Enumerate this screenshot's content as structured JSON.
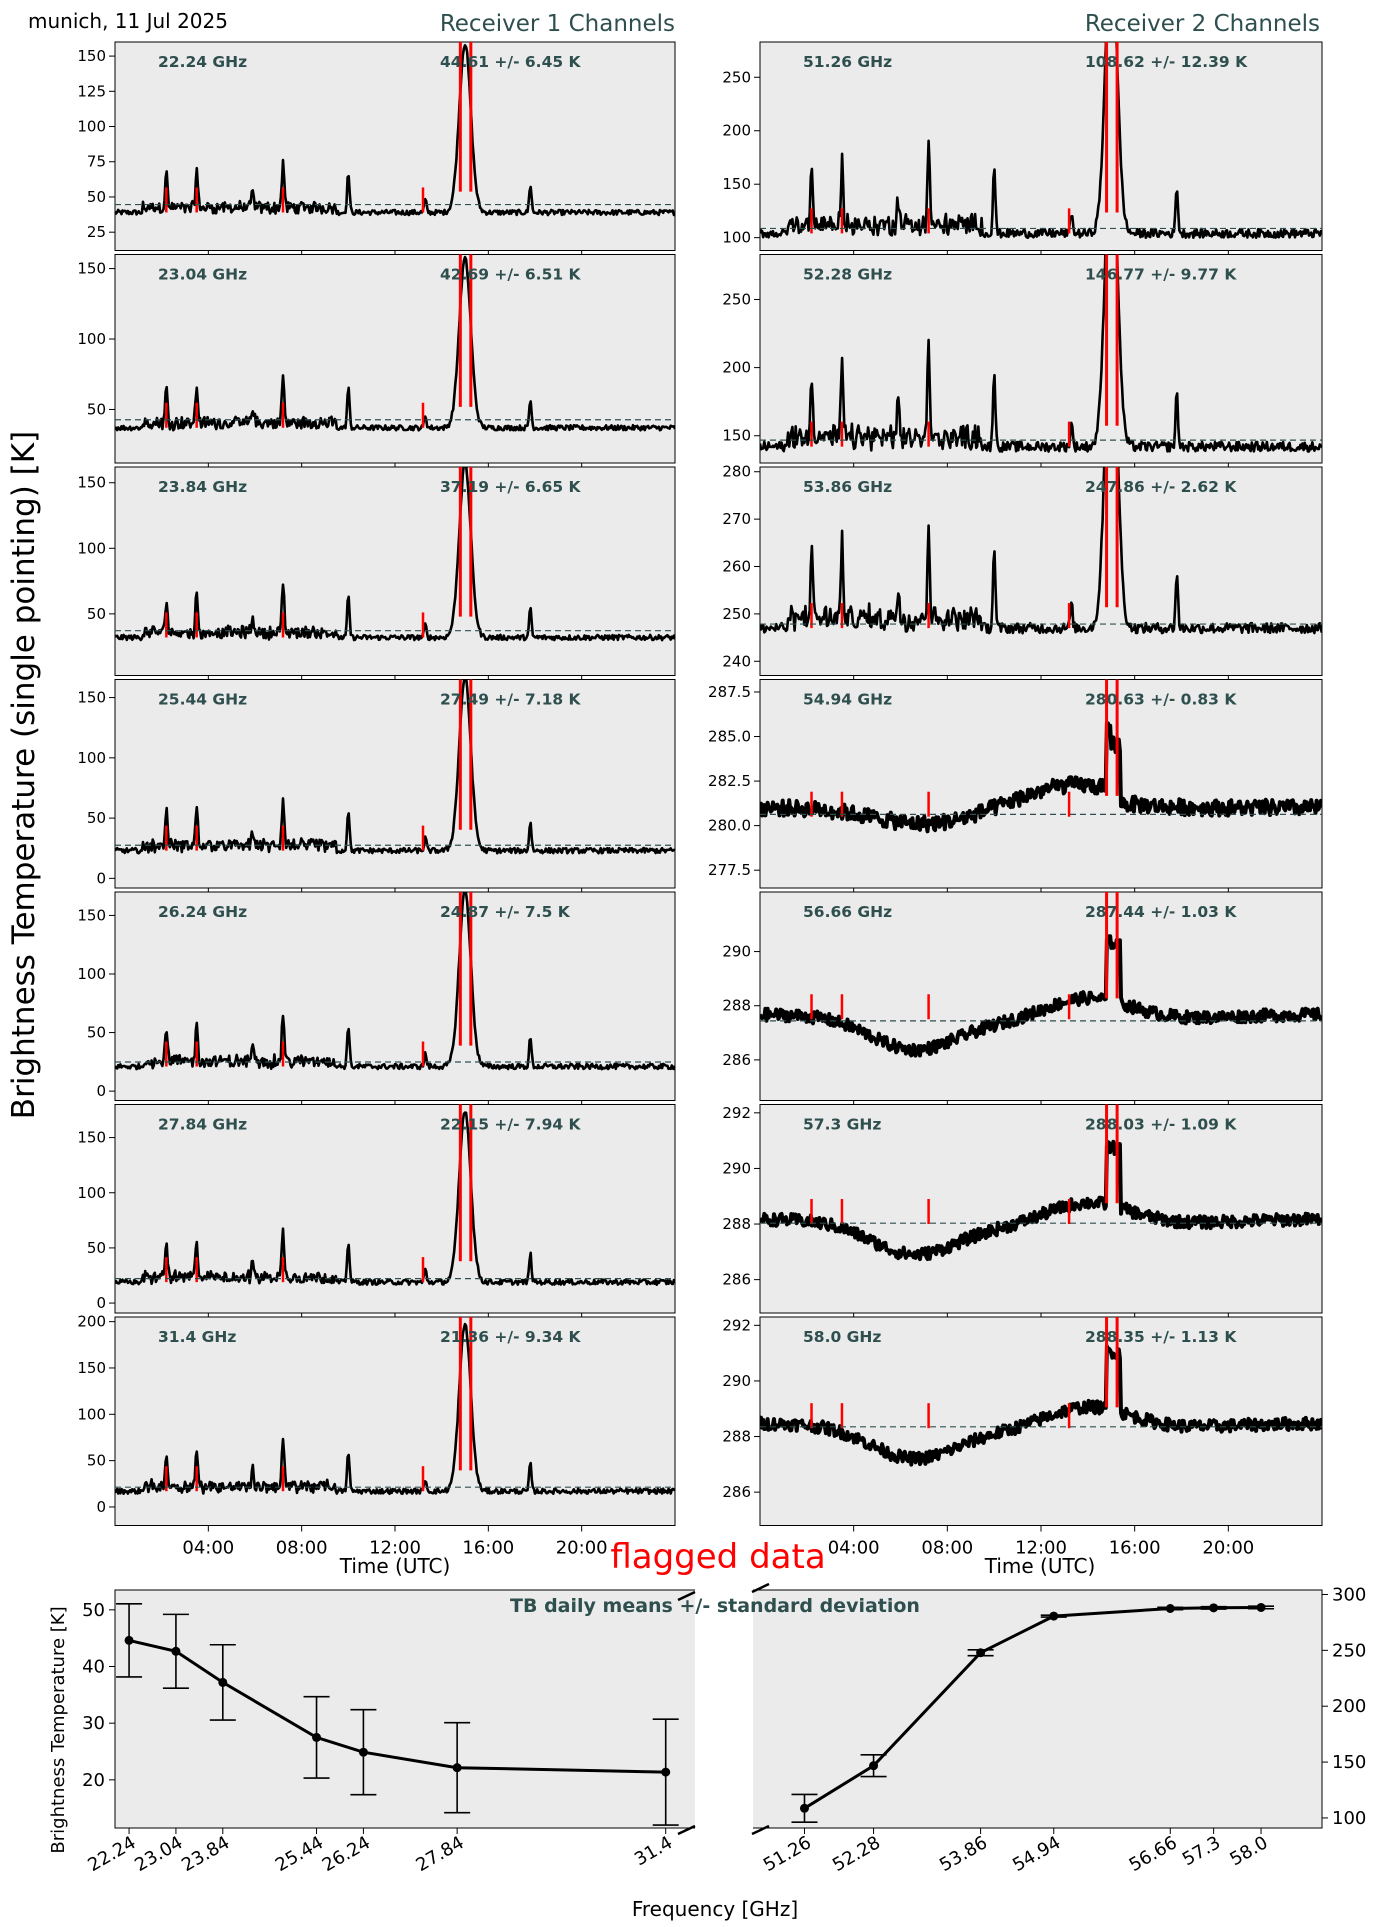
{
  "header": {
    "location_date": "munich, 11 Jul 2025",
    "receiver1_title": "Receiver 1 Channels",
    "receiver2_title": "Receiver 2 Channels"
  },
  "labels": {
    "y_axis_main": "Brightness Temperature (single pointing) [K]",
    "x_axis_time": "Time (UTC)",
    "flagged_legend": "flagged data",
    "bottom_title": "TB daily means +/- standard deviation",
    "bottom_ylabel": "Brightness Temperature [K]",
    "bottom_xlabel": "Frequency [GHz]"
  },
  "colors": {
    "panel_bg": "#ebebeb",
    "trace": "#000000",
    "flagged": "#ff0000",
    "annotation": "#2f4f4f",
    "mean_line": "#2f4f4f"
  },
  "time_ticks": [
    "04:00",
    "08:00",
    "12:00",
    "16:00",
    "20:00"
  ],
  "chart_data": [
    {
      "type": "line",
      "title": "Receiver 1 Channels",
      "xlabel": "Time (UTC)",
      "ylabel": "Brightness Temperature (single pointing) [K]",
      "xlim_hours": [
        0,
        24
      ],
      "series": [
        {
          "name": "22.24 GHz",
          "freq_label": "22.24 GHz",
          "stats_label": "44.61 +/- 6.45 K",
          "mean": 44.61,
          "ylim": [
            12,
            160
          ],
          "yticks": [
            25,
            50,
            75,
            100,
            125,
            150
          ],
          "base": 39,
          "peak_amp": 20
        },
        {
          "name": "23.04 GHz",
          "freq_label": "23.04 GHz",
          "stats_label": "42.69 +/- 6.51 K",
          "mean": 42.69,
          "ylim": [
            12,
            160
          ],
          "yticks": [
            50,
            100,
            150
          ],
          "base": 37,
          "peak_amp": 20
        },
        {
          "name": "23.84 GHz",
          "freq_label": "23.84 GHz",
          "stats_label": "37.19 +/- 6.65 K",
          "mean": 37.19,
          "ylim": [
            3,
            162
          ],
          "yticks": [
            50,
            100,
            150
          ],
          "base": 32,
          "peak_amp": 22
        },
        {
          "name": "25.44 GHz",
          "freq_label": "25.44 GHz",
          "stats_label": "27.49 +/- 7.18 K",
          "mean": 27.49,
          "ylim": [
            -8,
            165
          ],
          "yticks": [
            0,
            50,
            100,
            150
          ],
          "base": 23,
          "peak_amp": 24
        },
        {
          "name": "26.24 GHz",
          "freq_label": "26.24 GHz",
          "stats_label": "24.87 +/- 7.5 K",
          "mean": 24.87,
          "ylim": [
            -8,
            170
          ],
          "yticks": [
            0,
            50,
            100,
            150
          ],
          "base": 21,
          "peak_amp": 25
        },
        {
          "name": "27.84 GHz",
          "freq_label": "27.84 GHz",
          "stats_label": "22.15 +/- 7.94 K",
          "mean": 22.15,
          "ylim": [
            -9,
            180
          ],
          "yticks": [
            0,
            50,
            100,
            150
          ],
          "base": 19,
          "peak_amp": 26
        },
        {
          "name": "31.4 GHz",
          "freq_label": "31.4 GHz",
          "stats_label": "21.36 +/- 9.34 K",
          "mean": 21.36,
          "ylim": [
            -20,
            205
          ],
          "yticks": [
            0,
            50,
            100,
            150,
            200
          ],
          "base": 17,
          "peak_amp": 30
        }
      ]
    },
    {
      "type": "line",
      "title": "Receiver 2 Channels",
      "xlabel": "Time (UTC)",
      "xlim_hours": [
        0,
        24
      ],
      "series": [
        {
          "name": "51.26 GHz",
          "freq_label": "51.26 GHz",
          "stats_label": "108.62 +/- 12.39 K",
          "mean": 108.62,
          "ylim": [
            88,
            283
          ],
          "yticks": [
            100,
            150,
            200,
            250
          ],
          "base": 104,
          "peak_amp": 45
        },
        {
          "name": "52.28 GHz",
          "freq_label": "52.28 GHz",
          "stats_label": "146.77 +/- 9.77 K",
          "mean": 146.77,
          "ylim": [
            130,
            283
          ],
          "yticks": [
            150,
            200,
            250
          ],
          "base": 142,
          "peak_amp": 40
        },
        {
          "name": "53.86 GHz",
          "freq_label": "53.86 GHz",
          "stats_label": "247.86 +/- 2.62 K",
          "mean": 247.86,
          "ylim": [
            237,
            281
          ],
          "yticks": [
            240,
            250,
            260,
            270,
            280
          ],
          "base": 247,
          "peak_amp": 12
        },
        {
          "name": "54.94 GHz",
          "freq_label": "54.94 GHz",
          "stats_label": "280.63 +/- 0.83 K",
          "mean": 280.63,
          "ylim": [
            276.5,
            288.2
          ],
          "yticks": [
            277.5,
            280.0,
            282.5,
            285.0,
            287.5
          ],
          "ytick_labels": [
            "277.5",
            "280.0",
            "282.5",
            "285.0",
            "287.5"
          ],
          "base": 280.5,
          "peak_amp": 0
        },
        {
          "name": "56.66 GHz",
          "freq_label": "56.66 GHz",
          "stats_label": "287.44 +/- 1.03 K",
          "mean": 287.44,
          "ylim": [
            284.5,
            292.2
          ],
          "yticks": [
            286,
            288,
            290
          ],
          "base": 287.5,
          "peak_amp": 0
        },
        {
          "name": "57.3 GHz",
          "freq_label": "57.3 GHz",
          "stats_label": "288.03 +/- 1.09 K",
          "mean": 288.03,
          "ylim": [
            284.8,
            292.3
          ],
          "yticks": [
            286,
            288,
            290,
            292
          ],
          "base": 288,
          "peak_amp": 0
        },
        {
          "name": "58.0 GHz",
          "freq_label": "58.0 GHz",
          "stats_label": "288.35 +/- 1.13 K",
          "mean": 288.35,
          "ylim": [
            284.8,
            292.3
          ],
          "yticks": [
            286,
            288,
            290,
            292
          ],
          "base": 288.3,
          "peak_amp": 0
        }
      ]
    },
    {
      "type": "line",
      "title": "TB daily means +/- standard deviation",
      "xlabel": "Frequency [GHz]",
      "ylabel": "Brightness Temperature [K]",
      "left": {
        "x": [
          22.24,
          23.04,
          23.84,
          25.44,
          26.24,
          27.84,
          31.4
        ],
        "x_labels": [
          "22.24",
          "23.04",
          "23.84",
          "25.44",
          "26.24",
          "27.84",
          "31.4"
        ],
        "mean": [
          44.61,
          42.69,
          37.19,
          27.49,
          24.87,
          22.15,
          21.36
        ],
        "std": [
          6.45,
          6.51,
          6.65,
          7.18,
          7.5,
          7.94,
          9.34
        ],
        "ylim": [
          11.5,
          53.5
        ],
        "yticks": [
          20,
          30,
          40,
          50
        ]
      },
      "right": {
        "x": [
          51.26,
          52.28,
          53.86,
          54.94,
          56.66,
          57.3,
          58.0
        ],
        "x_labels": [
          "51.26",
          "52.28",
          "53.86",
          "54.94",
          "56.66",
          "57.3",
          "58.0"
        ],
        "mean": [
          108.62,
          146.77,
          247.86,
          280.63,
          287.44,
          288.03,
          288.35
        ],
        "std": [
          12.39,
          9.77,
          2.62,
          0.83,
          1.03,
          1.09,
          1.13
        ],
        "ylim": [
          91,
          304
        ],
        "yticks": [
          100,
          150,
          200,
          250,
          300
        ]
      }
    }
  ]
}
